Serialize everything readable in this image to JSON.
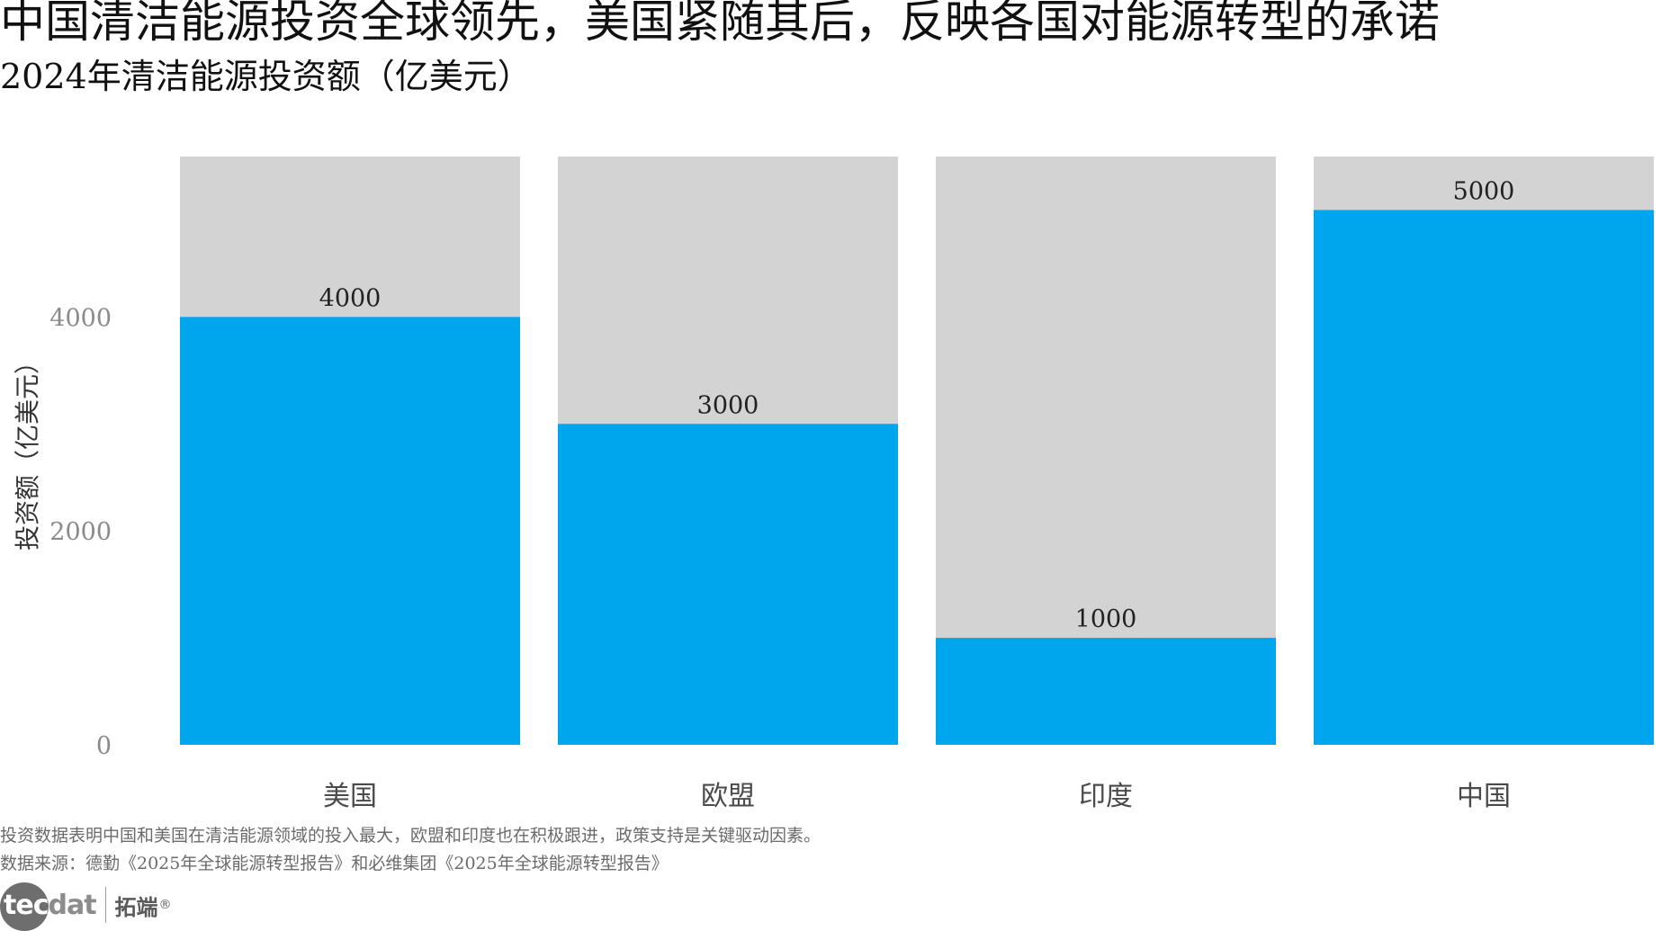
{
  "title": "中国清洁能源投资全球领先，美国紧随其后，反映各国对能源转型的承诺",
  "subtitle": "2024年清洁能源投资额（亿美元）",
  "note": "投资数据表明中国和美国在清洁能源领域的投入最大，欧盟和印度也在积极跟进，政策支持是关键驱动因素。",
  "source": "数据来源：德勤《2025年全球能源转型报告》和必维集团《2025年全球能源转型报告》",
  "logo": {
    "mark_part1": "tec",
    "mark_part2": "dat",
    "cn": "拓端",
    "reg": "®"
  },
  "colors": {
    "bar": "#00a6ed",
    "background_bar": "#d3d3d3",
    "tick": "#8a8a8a"
  },
  "chart_data": {
    "type": "bar",
    "categories": [
      "美国",
      "欧盟",
      "印度",
      "中国"
    ],
    "values": [
      4000,
      3000,
      1000,
      5000
    ],
    "data_labels": [
      "4000",
      "3000",
      "1000",
      "5000"
    ],
    "title": "中国清洁能源投资全球领先，美国紧随其后，反映各国对能源转型的承诺",
    "subtitle": "2024年清洁能源投资额（亿美元）",
    "xlabel": "",
    "ylabel": "投资额（亿美元）",
    "ylim": [
      0,
      5500
    ],
    "yticks": [
      0,
      2000,
      4000
    ],
    "ytick_labels": [
      "0",
      "2000",
      "4000"
    ],
    "background_bar_value": 5500,
    "grid": false,
    "legend": "none"
  }
}
